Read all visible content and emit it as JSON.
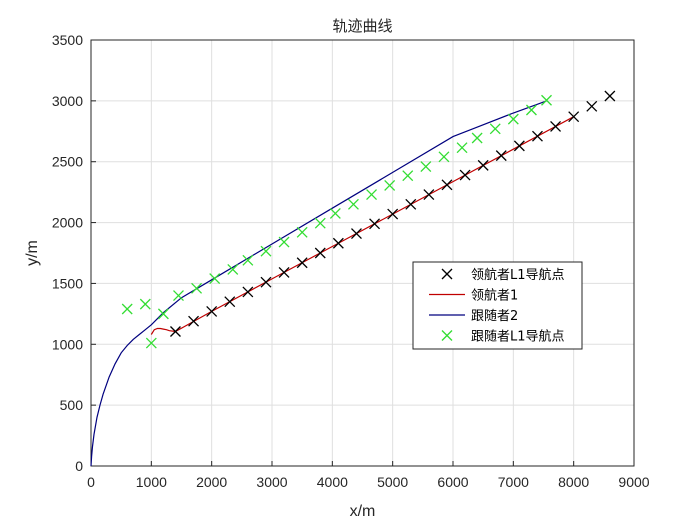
{
  "chart_data": {
    "type": "line",
    "title": "轨迹曲线",
    "xlabel": "x/m",
    "ylabel": "y/m",
    "xlim": [
      0,
      9000
    ],
    "ylim": [
      0,
      3500
    ],
    "xticks": [
      0,
      1000,
      2000,
      3000,
      4000,
      5000,
      6000,
      7000,
      8000,
      9000
    ],
    "yticks": [
      0,
      500,
      1000,
      1500,
      2000,
      2500,
      3000,
      3500
    ],
    "grid": true,
    "legend_position": "right-middle",
    "series": [
      {
        "name": "领航者L1导航点",
        "style": "marker",
        "marker": "x",
        "color": "#000000",
        "points": [
          [
            1400,
            1105
          ],
          [
            1700,
            1190
          ],
          [
            2000,
            1270
          ],
          [
            2300,
            1350
          ],
          [
            2600,
            1430
          ],
          [
            2900,
            1510
          ],
          [
            3200,
            1590
          ],
          [
            3500,
            1670
          ],
          [
            3800,
            1750
          ],
          [
            4100,
            1830
          ],
          [
            4400,
            1910
          ],
          [
            4700,
            1990
          ],
          [
            5000,
            2070
          ],
          [
            5300,
            2150
          ],
          [
            5600,
            2230
          ],
          [
            5900,
            2310
          ],
          [
            6200,
            2390
          ],
          [
            6500,
            2470
          ],
          [
            6800,
            2550
          ],
          [
            7100,
            2630
          ],
          [
            7400,
            2710
          ],
          [
            7700,
            2790
          ],
          [
            8000,
            2870
          ],
          [
            8300,
            2955
          ],
          [
            8600,
            3040
          ]
        ]
      },
      {
        "name": "领航者1",
        "style": "line",
        "color": "#c00000",
        "points": [
          [
            1000,
            1080
          ],
          [
            1050,
            1120
          ],
          [
            1100,
            1130
          ],
          [
            1150,
            1130
          ],
          [
            1200,
            1125
          ],
          [
            1250,
            1120
          ],
          [
            1300,
            1112
          ],
          [
            1400,
            1105
          ],
          [
            2000,
            1270
          ],
          [
            3000,
            1537
          ],
          [
            4000,
            1803
          ],
          [
            5000,
            2070
          ],
          [
            6000,
            2337
          ],
          [
            7000,
            2603
          ],
          [
            8000,
            2870
          ]
        ]
      },
      {
        "name": "跟随者2",
        "style": "line",
        "color": "#00007f",
        "points": [
          [
            0,
            0
          ],
          [
            10,
            80
          ],
          [
            25,
            160
          ],
          [
            50,
            260
          ],
          [
            100,
            400
          ],
          [
            150,
            500
          ],
          [
            200,
            590
          ],
          [
            300,
            730
          ],
          [
            400,
            840
          ],
          [
            500,
            930
          ],
          [
            600,
            990
          ],
          [
            700,
            1040
          ],
          [
            800,
            1080
          ],
          [
            900,
            1120
          ],
          [
            1000,
            1160
          ],
          [
            1100,
            1210
          ],
          [
            1200,
            1260
          ],
          [
            1500,
            1383
          ],
          [
            2000,
            1530
          ],
          [
            3000,
            1824
          ],
          [
            4000,
            2118
          ],
          [
            5000,
            2412
          ],
          [
            6000,
            2706
          ],
          [
            7000,
            2900
          ],
          [
            7550,
            3000
          ]
        ]
      },
      {
        "name": "跟随者L1导航点",
        "style": "marker",
        "marker": "x",
        "color": "#33dd33",
        "points": [
          [
            600,
            1290
          ],
          [
            900,
            1330
          ],
          [
            1000,
            1010
          ],
          [
            1200,
            1250
          ],
          [
            1450,
            1400
          ],
          [
            1750,
            1460
          ],
          [
            2050,
            1540
          ],
          [
            2350,
            1615
          ],
          [
            2600,
            1690
          ],
          [
            2900,
            1765
          ],
          [
            3200,
            1840
          ],
          [
            3500,
            1920
          ],
          [
            3800,
            1995
          ],
          [
            4050,
            2075
          ],
          [
            4350,
            2150
          ],
          [
            4650,
            2230
          ],
          [
            4950,
            2305
          ],
          [
            5250,
            2385
          ],
          [
            5550,
            2460
          ],
          [
            5850,
            2540
          ],
          [
            6150,
            2615
          ],
          [
            6400,
            2695
          ],
          [
            6700,
            2770
          ],
          [
            7000,
            2850
          ],
          [
            7300,
            2925
          ],
          [
            7550,
            3005
          ]
        ]
      }
    ]
  }
}
